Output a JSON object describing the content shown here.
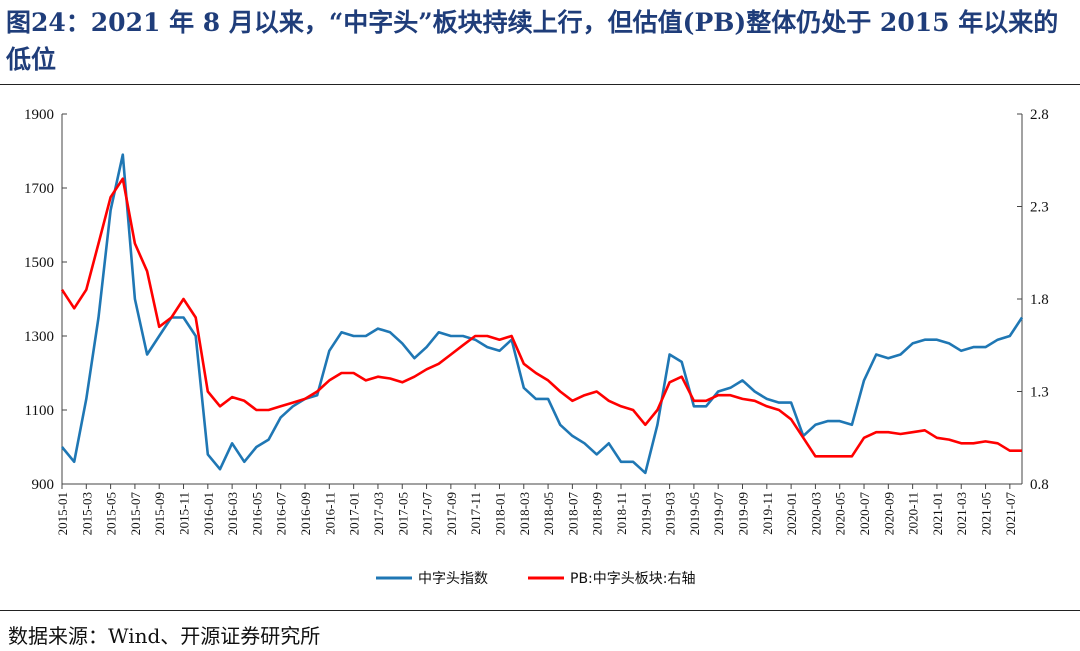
{
  "title": "图24：2021 年 8 月以来，“中字头”板块持续上行，但估值(PB)整体仍处于 2015 年以来的低位",
  "source": "数据来源：Wind、开源证券研究所",
  "colors": {
    "index_line": "#1f77b4",
    "pb_line": "#ff0000",
    "title": "#1f3d7a"
  },
  "chart_data": {
    "type": "line",
    "title": "",
    "x_ticks": [
      "2015-01",
      "2015-03",
      "2015-05",
      "2015-07",
      "2015-09",
      "2015-11",
      "2016-01",
      "2016-03",
      "2016-05",
      "2016-07",
      "2016-09",
      "2016-11",
      "2017-01",
      "2017-03",
      "2017-05",
      "2017-07",
      "2017-09",
      "2017-11",
      "2018-01",
      "2018-03",
      "2018-05",
      "2018-07",
      "2018-09",
      "2018-11",
      "2019-01",
      "2019-03",
      "2019-05",
      "2019-07",
      "2019-09",
      "2019-11",
      "2020-01",
      "2020-03",
      "2020-05",
      "2020-07",
      "2020-09",
      "2020-11",
      "2021-01",
      "2021-03",
      "2021-05",
      "2021-07"
    ],
    "y_left": {
      "ticks": [
        900,
        1100,
        1300,
        1500,
        1700,
        1900
      ],
      "range": [
        900,
        1900
      ]
    },
    "y_right": {
      "ticks": [
        0.8,
        1.3,
        1.8,
        2.3,
        2.8
      ],
      "range": [
        0.8,
        2.8
      ]
    },
    "legend_position": "bottom",
    "grid": false,
    "series": [
      {
        "name": "中字头指数",
        "axis": "left",
        "x": [
          "2015-01",
          "2015-02",
          "2015-03",
          "2015-04",
          "2015-05",
          "2015-06",
          "2015-07",
          "2015-08",
          "2015-09",
          "2015-10",
          "2015-11",
          "2015-12",
          "2016-01",
          "2016-02",
          "2016-03",
          "2016-04",
          "2016-05",
          "2016-06",
          "2016-07",
          "2016-08",
          "2016-09",
          "2016-10",
          "2016-11",
          "2016-12",
          "2017-01",
          "2017-02",
          "2017-03",
          "2017-04",
          "2017-05",
          "2017-06",
          "2017-07",
          "2017-08",
          "2017-09",
          "2017-10",
          "2017-11",
          "2017-12",
          "2018-01",
          "2018-02",
          "2018-03",
          "2018-04",
          "2018-05",
          "2018-06",
          "2018-07",
          "2018-08",
          "2018-09",
          "2018-10",
          "2018-11",
          "2018-12",
          "2019-01",
          "2019-02",
          "2019-03",
          "2019-04",
          "2019-05",
          "2019-06",
          "2019-07",
          "2019-08",
          "2019-09",
          "2019-10",
          "2019-11",
          "2019-12",
          "2020-01",
          "2020-02",
          "2020-03",
          "2020-04",
          "2020-05",
          "2020-06",
          "2020-07",
          "2020-08",
          "2020-09",
          "2020-10",
          "2020-11",
          "2020-12",
          "2021-01",
          "2021-02",
          "2021-03",
          "2021-04",
          "2021-05",
          "2021-06",
          "2021-07",
          "2021-08"
        ],
        "values": [
          1000,
          960,
          1130,
          1350,
          1640,
          1790,
          1400,
          1250,
          1300,
          1350,
          1350,
          1300,
          980,
          940,
          1010,
          960,
          1000,
          1020,
          1080,
          1110,
          1130,
          1140,
          1260,
          1310,
          1300,
          1300,
          1320,
          1310,
          1280,
          1240,
          1270,
          1310,
          1300,
          1300,
          1290,
          1270,
          1260,
          1290,
          1160,
          1130,
          1130,
          1060,
          1030,
          1010,
          980,
          1010,
          960,
          960,
          930,
          1060,
          1250,
          1230,
          1110,
          1110,
          1150,
          1160,
          1180,
          1150,
          1130,
          1120,
          1120,
          1030,
          1060,
          1070,
          1070,
          1060,
          1180,
          1250,
          1240,
          1250,
          1280,
          1290,
          1290,
          1280,
          1260,
          1270,
          1270,
          1290,
          1300,
          1350
        ]
      },
      {
        "name": "PB:中字头板块:右轴",
        "axis": "right",
        "x": [
          "2015-01",
          "2015-02",
          "2015-03",
          "2015-04",
          "2015-05",
          "2015-06",
          "2015-07",
          "2015-08",
          "2015-09",
          "2015-10",
          "2015-11",
          "2015-12",
          "2016-01",
          "2016-02",
          "2016-03",
          "2016-04",
          "2016-05",
          "2016-06",
          "2016-07",
          "2016-08",
          "2016-09",
          "2016-10",
          "2016-11",
          "2016-12",
          "2017-01",
          "2017-02",
          "2017-03",
          "2017-04",
          "2017-05",
          "2017-06",
          "2017-07",
          "2017-08",
          "2017-09",
          "2017-10",
          "2017-11",
          "2017-12",
          "2018-01",
          "2018-02",
          "2018-03",
          "2018-04",
          "2018-05",
          "2018-06",
          "2018-07",
          "2018-08",
          "2018-09",
          "2018-10",
          "2018-11",
          "2018-12",
          "2019-01",
          "2019-02",
          "2019-03",
          "2019-04",
          "2019-05",
          "2019-06",
          "2019-07",
          "2019-08",
          "2019-09",
          "2019-10",
          "2019-11",
          "2019-12",
          "2020-01",
          "2020-02",
          "2020-03",
          "2020-04",
          "2020-05",
          "2020-06",
          "2020-07",
          "2020-08",
          "2020-09",
          "2020-10",
          "2020-11",
          "2020-12",
          "2021-01",
          "2021-02",
          "2021-03",
          "2021-04",
          "2021-05",
          "2021-06",
          "2021-07",
          "2021-08"
        ],
        "values": [
          1.85,
          1.75,
          1.85,
          2.1,
          2.35,
          2.45,
          2.1,
          1.95,
          1.65,
          1.7,
          1.8,
          1.7,
          1.3,
          1.22,
          1.27,
          1.25,
          1.2,
          1.2,
          1.22,
          1.24,
          1.26,
          1.3,
          1.36,
          1.4,
          1.4,
          1.36,
          1.38,
          1.37,
          1.35,
          1.38,
          1.42,
          1.45,
          1.5,
          1.55,
          1.6,
          1.6,
          1.58,
          1.6,
          1.45,
          1.4,
          1.36,
          1.3,
          1.25,
          1.28,
          1.3,
          1.25,
          1.22,
          1.2,
          1.12,
          1.2,
          1.35,
          1.38,
          1.25,
          1.25,
          1.28,
          1.28,
          1.26,
          1.25,
          1.22,
          1.2,
          1.15,
          1.05,
          0.95,
          0.95,
          0.95,
          0.95,
          1.05,
          1.08,
          1.08,
          1.07,
          1.08,
          1.09,
          1.05,
          1.04,
          1.02,
          1.02,
          1.03,
          1.02,
          0.98,
          0.98
        ]
      }
    ]
  }
}
